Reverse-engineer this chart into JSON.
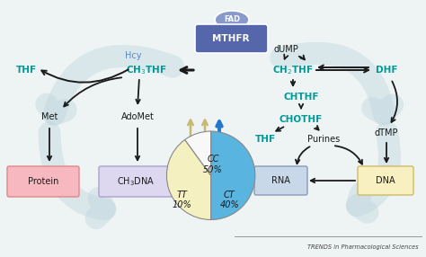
{
  "bg_color": "#eef3f3",
  "teal": "#009999",
  "blue_label": "#5588cc",
  "black": "#1a1a1a",
  "mthfr_body_color": "#5566aa",
  "fad_color": "#8899cc",
  "protein_box_fc": "#f8b8c0",
  "protein_box_ec": "#dd8888",
  "ch3dna_box_fc": "#ddd8f0",
  "ch3dna_box_ec": "#aaa0cc",
  "rna_box_fc": "#c8d8e8",
  "rna_box_ec": "#8899bb",
  "dna_box_fc": "#f8f0c0",
  "dna_box_ec": "#ccbb66",
  "bg_arrow_color": "#c0d8e0",
  "pie_values": [
    50,
    40,
    10
  ],
  "pie_colors": [
    "#5ab4e0",
    "#f5f0c0",
    "#f8f8f8"
  ],
  "pie_ec": "#888888",
  "arrow_up_tan": "#c8b870",
  "arrow_up_blue": "#2277cc"
}
